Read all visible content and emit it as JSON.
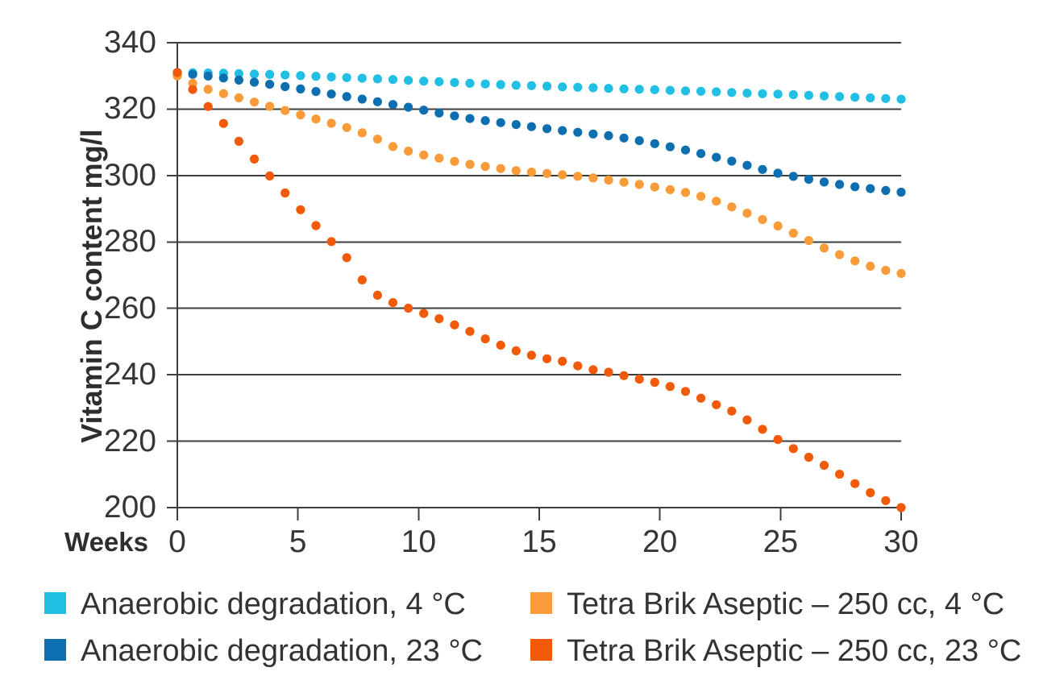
{
  "chart_data": {
    "type": "scatter",
    "style": "dotted-line",
    "title": "",
    "xlabel": "Weeks",
    "ylabel": "Vitamin C content mg/l",
    "xlim": [
      0,
      30
    ],
    "ylim": [
      200,
      340
    ],
    "xticks": [
      0,
      5,
      10,
      15,
      20,
      25,
      30
    ],
    "yticks": [
      200,
      220,
      240,
      260,
      280,
      300,
      320,
      340
    ],
    "grid": "horizontal",
    "legend_position": "bottom",
    "x_weeks": [
      0,
      1,
      2,
      3,
      4,
      5,
      6,
      7,
      8,
      9,
      10,
      11,
      12,
      13,
      14,
      15,
      16,
      17,
      18,
      19,
      20,
      21,
      22,
      23,
      24,
      25,
      26,
      27,
      28,
      29,
      30
    ],
    "series": [
      {
        "name": "Anaerobic degradation, 4 °C",
        "color": "#22bfe5",
        "values": [
          331,
          330.9,
          330.8,
          330.6,
          330.4,
          330.1,
          329.8,
          329.5,
          329.2,
          328.9,
          328.5,
          328.2,
          327.8,
          327.5,
          327.2,
          327,
          326.7,
          326.5,
          326.2,
          326,
          325.8,
          325.5,
          325.3,
          325,
          324.7,
          324.5,
          324.2,
          323.9,
          323.6,
          323.3,
          323
        ]
      },
      {
        "name": "Anaerobic degradation, 23 °C",
        "color": "#0e6fb0",
        "values": [
          331,
          330.2,
          329.3,
          328.3,
          327.3,
          326.2,
          325,
          323.8,
          322.6,
          321.3,
          320,
          318.6,
          317.3,
          316.3,
          315.4,
          314.4,
          313.5,
          312.7,
          311.9,
          310.7,
          309.3,
          307.8,
          306.1,
          304.3,
          302.3,
          300.5,
          299.1,
          297.8,
          296.7,
          295.8,
          295
        ]
      },
      {
        "name": "Tetra Brik Aseptic – 250 cc, 4 °C",
        "color": "#f89b38",
        "values": [
          330,
          326.5,
          324.5,
          322.5,
          320.5,
          318.5,
          316.5,
          314.5,
          312,
          308.5,
          306.5,
          305,
          303.5,
          302.5,
          301.5,
          300.8,
          300.2,
          299.5,
          298.5,
          297.5,
          296.3,
          295,
          293.2,
          290.5,
          287.5,
          284.5,
          281,
          277.5,
          274.5,
          272,
          270.5
        ]
      },
      {
        "name": "Tetra Brik Aseptic – 250 cc, 23 °C",
        "color": "#f15a08",
        "values": [
          331,
          323,
          315,
          306.5,
          298.5,
          290.5,
          283,
          275.5,
          265,
          261.5,
          259,
          256.5,
          253.5,
          250,
          247.3,
          245.2,
          244,
          241.8,
          240.6,
          238.9,
          237.4,
          235.2,
          232,
          229,
          224.8,
          220,
          215.8,
          212,
          207.6,
          203.3,
          200
        ]
      }
    ]
  },
  "layout_colors": {
    "background": "#ffffff",
    "grid_line": "#3e3e3e",
    "text": "#333333"
  }
}
